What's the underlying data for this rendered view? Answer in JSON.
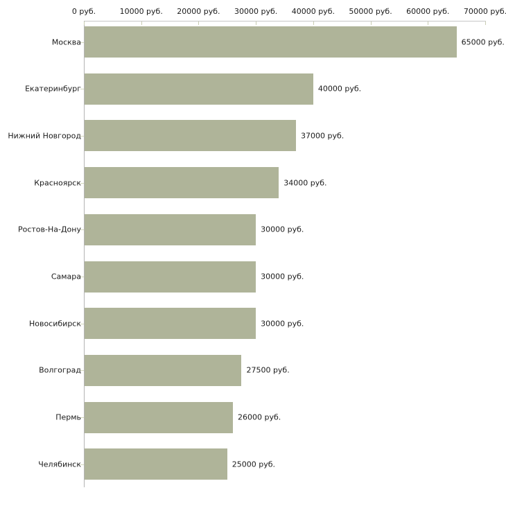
{
  "chart_data": {
    "type": "bar",
    "orientation": "horizontal",
    "title": "",
    "xlabel": "",
    "ylabel": "",
    "unit": "руб.",
    "legend": "none",
    "grid": "off",
    "categories": [
      "Москва",
      "Екатеринбург",
      "Нижний Новгород",
      "Красноярск",
      "Ростов-На-Дону",
      "Самара",
      "Новосибирск",
      "Волгоград",
      "Пермь",
      "Челябинск"
    ],
    "values": [
      65000,
      40000,
      37000,
      34000,
      30000,
      30000,
      30000,
      27500,
      26000,
      25000
    ],
    "value_labels": [
      "65000 руб.",
      "40000 руб.",
      "37000 руб.",
      "34000 руб.",
      "30000 руб.",
      "30000 руб.",
      "30000 руб.",
      "27500 руб.",
      "26000 руб.",
      "25000 руб."
    ],
    "x_axis": {
      "position": "top",
      "min": 0,
      "max": 70000,
      "tick_step": 10000,
      "tick_labels": [
        "0 руб.",
        "10000 руб.",
        "20000 руб.",
        "30000 руб.",
        "40000 руб.",
        "50000 руб.",
        "60000 руб.",
        "70000 руб."
      ]
    },
    "colors": {
      "bar": "#afb499",
      "x_axis_line": "#c6c6c6",
      "y_axis_line": "#b4b4b4",
      "x_tick": "#c9cdb2",
      "category_tick": "#d4d8bc",
      "text": "#1a1a1a",
      "background": "#ffffff"
    }
  }
}
